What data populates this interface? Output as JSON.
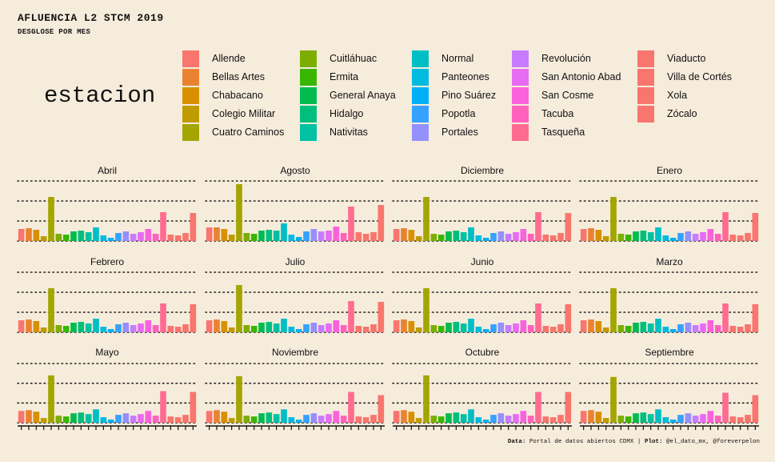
{
  "title": "AFLUENCIA L2 STCM 2019",
  "subtitle": "DESGLOSE POR MES",
  "legend_title": "estacion",
  "caption": {
    "data_label": "Data:",
    "data_text": "Portal de datos abiertos CDMX |",
    "plot_label": "Plot:",
    "plot_text": "@el_dato_mx, @foreverpelon"
  },
  "chart_data": {
    "type": "bar",
    "legend_placement": "top",
    "grid": "dotted horizontal",
    "categories": [
      "Allende",
      "Bellas Artes",
      "Chabacano",
      "Colegio Militar",
      "Cuatro Caminos",
      "Cuitláhuac",
      "Ermita",
      "General Anaya",
      "Hidalgo",
      "Nativitas",
      "Normal",
      "Panteones",
      "Pino Suárez",
      "Popotla",
      "Portales",
      "Revolución",
      "San Antonio Abad",
      "San Cosme",
      "Tacuba",
      "Tasqueña",
      "Viaducto",
      "Villa de Cortés",
      "Xola",
      "Zócalo"
    ],
    "colors": [
      "#f8766d",
      "#ea8331",
      "#d89000",
      "#c09b00",
      "#a3a500",
      "#7cae00",
      "#39b600",
      "#00bb4e",
      "#00bf7d",
      "#00c1a3",
      "#00bfc4",
      "#00bae0",
      "#00b0f6",
      "#35a2ff",
      "#9590ff",
      "#c77cff",
      "#e76bf3",
      "#fa62db",
      "#ff62bc",
      "#ff6c91",
      "#f8766d",
      "#f8766d",
      "#f8766d",
      "#f8766d"
    ],
    "panels": [
      {
        "month": "Abril",
        "values": [
          30,
          32,
          28,
          12,
          110,
          18,
          16,
          24,
          26,
          22,
          34,
          14,
          8,
          20,
          24,
          18,
          22,
          30,
          18,
          72,
          16,
          14,
          20,
          70
        ]
      },
      {
        "month": "Agosto",
        "values": [
          34,
          34,
          30,
          16,
          142,
          20,
          18,
          26,
          28,
          26,
          44,
          16,
          10,
          24,
          30,
          24,
          26,
          36,
          20,
          86,
          22,
          18,
          22,
          90
        ]
      },
      {
        "month": "Diciembre",
        "values": [
          30,
          32,
          28,
          12,
          110,
          18,
          16,
          24,
          26,
          22,
          34,
          14,
          8,
          20,
          24,
          18,
          22,
          30,
          18,
          72,
          16,
          14,
          20,
          70
        ]
      },
      {
        "month": "Enero",
        "values": [
          30,
          32,
          28,
          12,
          110,
          18,
          16,
          24,
          26,
          22,
          34,
          14,
          8,
          20,
          24,
          18,
          22,
          30,
          18,
          72,
          16,
          14,
          20,
          70
        ]
      },
      {
        "month": "Febrero",
        "values": [
          30,
          32,
          28,
          12,
          110,
          18,
          16,
          24,
          26,
          22,
          34,
          14,
          8,
          20,
          24,
          18,
          22,
          30,
          18,
          72,
          16,
          14,
          20,
          70
        ]
      },
      {
        "month": "Julio",
        "values": [
          30,
          32,
          28,
          12,
          118,
          18,
          16,
          24,
          26,
          22,
          34,
          14,
          8,
          20,
          24,
          18,
          22,
          30,
          18,
          78,
          16,
          14,
          20,
          76
        ]
      },
      {
        "month": "Junio",
        "values": [
          30,
          32,
          28,
          12,
          110,
          18,
          16,
          24,
          26,
          22,
          34,
          14,
          8,
          20,
          24,
          18,
          22,
          30,
          18,
          72,
          16,
          14,
          20,
          70
        ]
      },
      {
        "month": "Marzo",
        "values": [
          30,
          32,
          28,
          12,
          110,
          18,
          16,
          24,
          26,
          22,
          34,
          14,
          8,
          20,
          24,
          18,
          22,
          30,
          18,
          72,
          16,
          14,
          20,
          70
        ]
      },
      {
        "month": "Mayo",
        "values": [
          30,
          32,
          28,
          12,
          120,
          18,
          16,
          24,
          26,
          22,
          34,
          14,
          8,
          20,
          24,
          18,
          22,
          30,
          18,
          80,
          16,
          14,
          20,
          78
        ]
      },
      {
        "month": "Noviembre",
        "values": [
          30,
          32,
          28,
          12,
          118,
          18,
          16,
          24,
          26,
          22,
          34,
          14,
          8,
          20,
          24,
          18,
          22,
          30,
          18,
          78,
          16,
          14,
          20,
          70
        ]
      },
      {
        "month": "Octubre",
        "values": [
          30,
          32,
          28,
          12,
          120,
          18,
          16,
          24,
          26,
          22,
          34,
          14,
          8,
          20,
          24,
          18,
          22,
          30,
          18,
          78,
          16,
          14,
          20,
          78
        ]
      },
      {
        "month": "Septiembre",
        "values": [
          30,
          32,
          28,
          12,
          116,
          18,
          16,
          24,
          26,
          22,
          34,
          14,
          8,
          20,
          24,
          18,
          22,
          30,
          18,
          76,
          16,
          14,
          20,
          70
        ]
      }
    ]
  }
}
